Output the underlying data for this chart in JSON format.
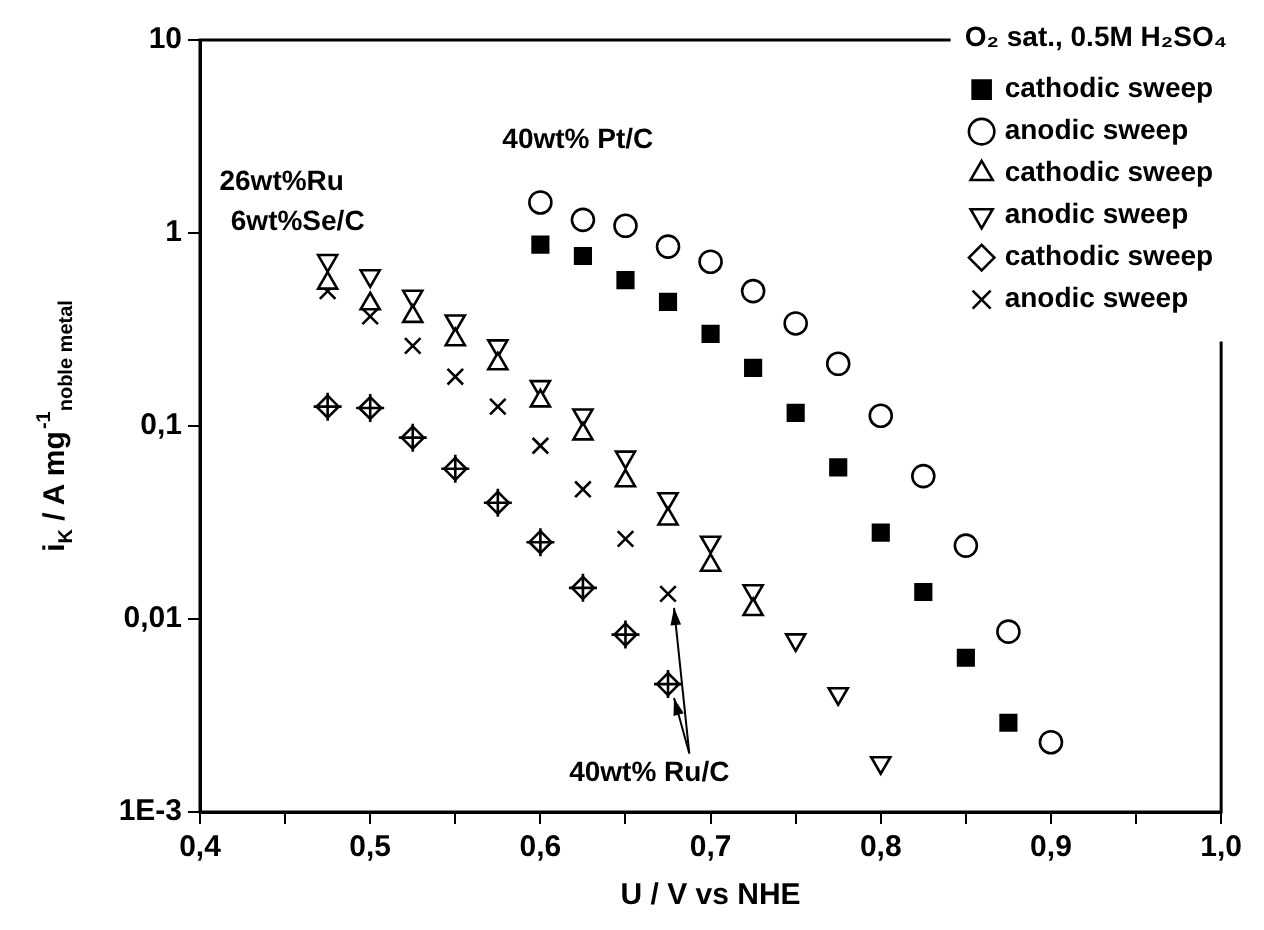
{
  "chart_data": {
    "type": "scatter",
    "xlabel": "U / V vs NHE",
    "ylabel": "i$_{K}$ / A mg$^{-1}$$_{noble metal}$",
    "legend_title": "O₂ sat., 0.5M H₂SO₄",
    "legend": "top right",
    "grid": false,
    "log": "y",
    "xlim": [
      0.4,
      1.0
    ],
    "xticks": [
      {
        "value": 0.4,
        "label": "0,4"
      },
      {
        "value": 0.45,
        "label": null
      },
      {
        "value": 0.5,
        "label": "0,5"
      },
      {
        "value": 0.55,
        "label": null
      },
      {
        "value": 0.6,
        "label": "0,6"
      },
      {
        "value": 0.65,
        "label": null
      },
      {
        "value": 0.7,
        "label": "0,7"
      },
      {
        "value": 0.75,
        "label": null
      },
      {
        "value": 0.8,
        "label": "0,8"
      },
      {
        "value": 0.85,
        "label": null
      },
      {
        "value": 0.9,
        "label": "0,9"
      },
      {
        "value": 0.95,
        "label": null
      },
      {
        "value": 1.0,
        "label": "1,0"
      }
    ],
    "ylim": [
      0.001,
      10
    ],
    "yticks": [
      {
        "value": 0.001,
        "label": "1E-3"
      },
      {
        "value": 0.01,
        "label": "0,01"
      },
      {
        "value": 0.1,
        "label": "0,1"
      },
      1,
      10
    ],
    "annotations": [
      "40wt% Pt/C",
      "26wt%Ru\n6wt%Se/C",
      {
        "text": "40wt% Ru/C",
        "x": 0.675,
        "y": 0.0046
      }
    ],
    "series": [
      {
        "name": "cathodic sweep",
        "color": "#000000",
        "marker": "square",
        "x": [
          0.6,
          0.625,
          0.65,
          0.675,
          0.7,
          0.725,
          0.75,
          0.775,
          0.8,
          0.825,
          0.85,
          0.875
        ],
        "values": [
          0.87,
          0.76,
          0.57,
          0.44,
          0.3,
          0.2,
          0.117,
          0.061,
          0.028,
          0.0138,
          0.0063,
          0.0029
        ]
      },
      {
        "name": "anodic sweep",
        "color": "#000000",
        "marker": "circle",
        "x": [
          0.6,
          0.625,
          0.65,
          0.675,
          0.7,
          0.725,
          0.75,
          0.775,
          0.8,
          0.825,
          0.85,
          0.875,
          0.9
        ],
        "values": [
          1.44,
          1.17,
          1.09,
          0.85,
          0.71,
          0.5,
          0.34,
          0.21,
          0.113,
          0.055,
          0.024,
          0.0086,
          0.0023
        ]
      },
      {
        "name": "cathodic sweep",
        "color": "#000000",
        "marker": "triangle",
        "x": [
          0.475,
          0.5,
          0.525,
          0.55,
          0.575,
          0.6,
          0.625,
          0.65,
          0.675,
          0.7,
          0.725
        ],
        "values": [
          0.55,
          0.43,
          0.37,
          0.28,
          0.21,
          0.135,
          0.091,
          0.052,
          0.033,
          0.019,
          0.0112
        ]
      },
      {
        "name": "anodic sweep",
        "color": "#000000",
        "marker": "triangle-down",
        "x": [
          0.475,
          0.5,
          0.525,
          0.55,
          0.575,
          0.6,
          0.625,
          0.65,
          0.675,
          0.7,
          0.725,
          0.75,
          0.775,
          0.8
        ],
        "values": [
          0.72,
          0.6,
          0.47,
          0.35,
          0.26,
          0.16,
          0.114,
          0.069,
          0.042,
          0.025,
          0.014,
          0.0078,
          0.0041,
          0.0018
        ]
      },
      {
        "name": "cathodic sweep",
        "color": "#000000",
        "marker": "diamond",
        "x": [
          0.475,
          0.5,
          0.525,
          0.55,
          0.575,
          0.6,
          0.625,
          0.65,
          0.675
        ],
        "values": [
          0.126,
          0.124,
          0.087,
          0.06,
          0.04,
          0.025,
          0.0145,
          0.0083,
          0.0046
        ]
      },
      {
        "name": "anodic sweep",
        "color": "#000000",
        "marker": "cross",
        "x": [
          0.475,
          0.5,
          0.525,
          0.55,
          0.575,
          0.6,
          0.625,
          0.65,
          0.675
        ],
        "values": [
          0.5,
          0.37,
          0.26,
          0.18,
          0.126,
          0.079,
          0.047,
          0.026,
          0.0135
        ]
      }
    ]
  }
}
